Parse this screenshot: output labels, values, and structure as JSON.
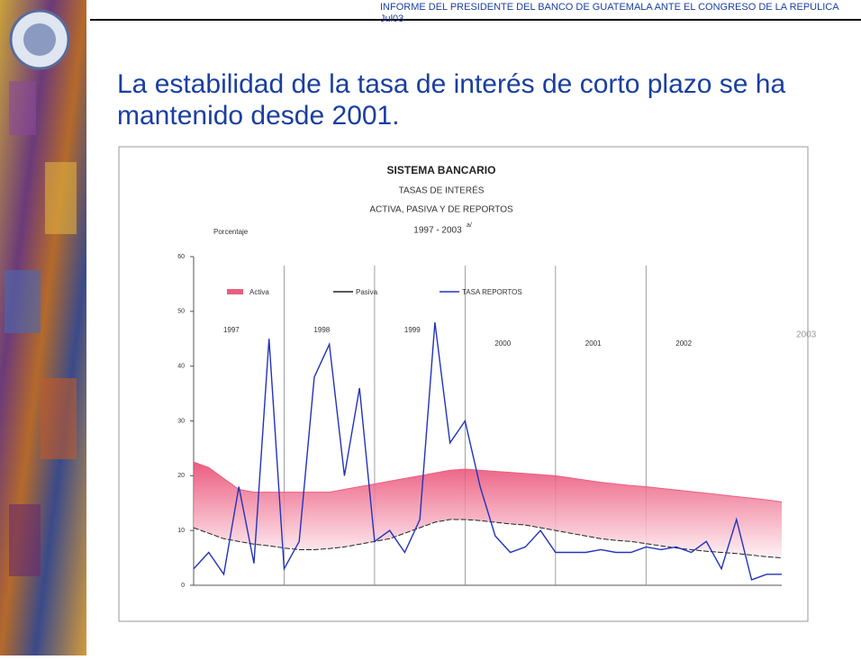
{
  "header": {
    "text": "INFORME DEL PRESIDENTE DEL BANCO DE GUATEMALA ANTE EL CONGRESO DE LA REPÚLICA  Jul03"
  },
  "slide_title": "La estabilidad de la tasa de interés de corto plazo se ha mantenido desde 2001.",
  "chart_data": {
    "type": "line",
    "title": "SISTEMA BANCARIO",
    "subtitle": [
      "TASAS DE INTERÉS",
      "ACTIVA, PASIVA Y DE REPORTOS",
      "1997 - 2003"
    ],
    "subtitle_note": "a/",
    "y_label": "Porcentaje",
    "annotations": [
      "1997",
      "1998",
      "1999",
      "2000",
      "2001",
      "2002",
      "2003"
    ],
    "categories": [
      null,
      null,
      null,
      null,
      null,
      null,
      null,
      null,
      null,
      null,
      null,
      null,
      null,
      null,
      null,
      null,
      null,
      null,
      null,
      null,
      null,
      null,
      null,
      null,
      null,
      null,
      null,
      null,
      null,
      null,
      null,
      null,
      null,
      null,
      null,
      null,
      null,
      null,
      null,
      null
    ],
    "series": [
      {
        "name": "Activa",
        "color": "#e8607f",
        "values": [
          22.5,
          21.5,
          19.5,
          17.5,
          17,
          17,
          17,
          17,
          17,
          17,
          17.5,
          18,
          18.5,
          19,
          19.5,
          20,
          20.5,
          21,
          21.2,
          21,
          20.8,
          20.6,
          20.4,
          20.2,
          20,
          19.6,
          19.2,
          18.8,
          18.5,
          18.2,
          18,
          17.7,
          17.4,
          17.1,
          16.8,
          16.5,
          16.2,
          15.9,
          15.6,
          15.2
        ]
      },
      {
        "name": "Pasiva",
        "color": "#222222",
        "values": [
          10.5,
          9.5,
          8.5,
          8,
          7.5,
          7.2,
          6.8,
          6.5,
          6.5,
          6.7,
          7,
          7.5,
          8,
          8.5,
          9.5,
          10.5,
          11.5,
          12,
          12,
          11.8,
          11.5,
          11.2,
          11,
          10.5,
          10,
          9.5,
          9,
          8.5,
          8.2,
          8,
          7.6,
          7.2,
          6.8,
          6.5,
          6.2,
          6,
          5.8,
          5.5,
          5.2,
          5
        ]
      },
      {
        "name": "TASA REPORTOS",
        "color": "#2233bb",
        "values": [
          3,
          6,
          2,
          18,
          4,
          45,
          3,
          8,
          38,
          44,
          20,
          36,
          8,
          10,
          6,
          12,
          48,
          26,
          30,
          18,
          9,
          6,
          7,
          10,
          6,
          6,
          6,
          6.5,
          6,
          6,
          7,
          6.5,
          7,
          6,
          8,
          3,
          12,
          1,
          2,
          2
        ]
      }
    ],
    "ylim": [
      0,
      60
    ],
    "yticks": [
      0,
      10,
      20,
      30,
      40,
      50,
      60
    ]
  }
}
